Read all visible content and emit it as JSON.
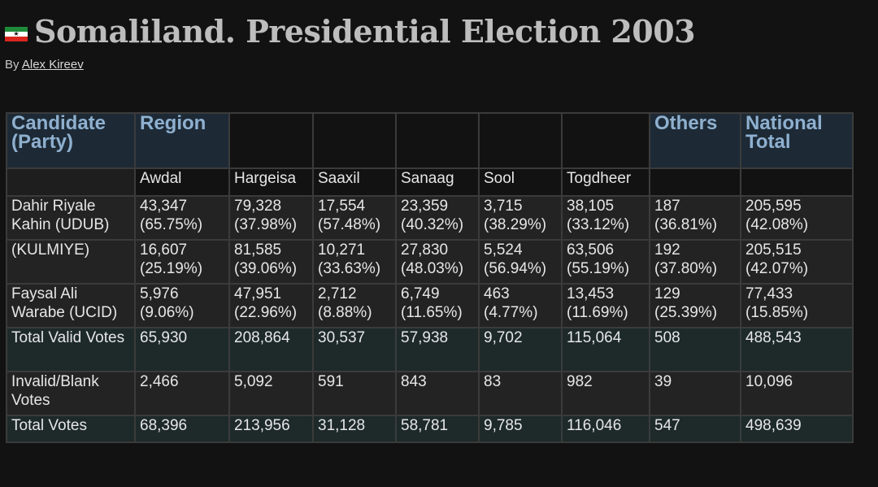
{
  "header": {
    "title": "Somaliland. Presidential Election 2003",
    "by_prefix": "By",
    "author": "Alex Kireev"
  },
  "table": {
    "head": {
      "candidate": "Candidate (Party)",
      "region": "Region",
      "others": "Others",
      "national": "National Total"
    },
    "regions": [
      "Awdal",
      "Hargeisa",
      "Saaxil",
      "Sanaag",
      "Sool",
      "Togdheer"
    ],
    "rows": [
      {
        "label": "Dahir Riyale Kahin (UDUB)",
        "cells": [
          [
            "43,347",
            "(65.75%)"
          ],
          [
            "79,328",
            "(37.98%)"
          ],
          [
            "17,554",
            "(57.48%)"
          ],
          [
            "23,359",
            "(40.32%)"
          ],
          [
            "3,715",
            "(38.29%)"
          ],
          [
            "38,105",
            "(33.12%)"
          ],
          [
            "187",
            "(36.81%)"
          ],
          [
            "205,595",
            "(42.08%)"
          ]
        ]
      },
      {
        "label": "(KULMIYE)",
        "cells": [
          [
            "16,607",
            "(25.19%)"
          ],
          [
            "81,585",
            "(39.06%)"
          ],
          [
            "10,271",
            "(33.63%)"
          ],
          [
            "27,830",
            "(48.03%)"
          ],
          [
            "5,524",
            "(56.94%)"
          ],
          [
            "63,506",
            "(55.19%)"
          ],
          [
            "192",
            "(37.80%)"
          ],
          [
            "205,515",
            "(42.07%)"
          ]
        ]
      },
      {
        "label": "Faysal Ali Warabe (UCID)",
        "cells": [
          [
            "5,976",
            "(9.06%)"
          ],
          [
            "47,951",
            "(22.96%)"
          ],
          [
            "2,712",
            "(8.88%)"
          ],
          [
            "6,749",
            "(11.65%)"
          ],
          [
            "463",
            "(4.77%)"
          ],
          [
            "13,453",
            "(11.69%)"
          ],
          [
            "129",
            "(25.39%)"
          ],
          [
            "77,433",
            "(15.85%)"
          ]
        ]
      },
      {
        "label": "Total Valid Votes",
        "cells": [
          [
            "65,930",
            ""
          ],
          [
            "208,864",
            ""
          ],
          [
            "30,537",
            ""
          ],
          [
            "57,938",
            ""
          ],
          [
            "9,702",
            ""
          ],
          [
            "115,064",
            ""
          ],
          [
            "508",
            ""
          ],
          [
            "488,543",
            ""
          ]
        ]
      },
      {
        "label": "Invalid/Blank Votes",
        "cells": [
          [
            "2,466",
            ""
          ],
          [
            "5,092",
            ""
          ],
          [
            "591",
            ""
          ],
          [
            "843",
            ""
          ],
          [
            "83",
            ""
          ],
          [
            "982",
            ""
          ],
          [
            "39",
            ""
          ],
          [
            "10,096",
            ""
          ]
        ]
      },
      {
        "label": "Total Votes",
        "cells": [
          [
            "68,396",
            ""
          ],
          [
            "213,956",
            ""
          ],
          [
            "31,128",
            ""
          ],
          [
            "58,781",
            ""
          ],
          [
            "9,785",
            ""
          ],
          [
            "116,046",
            ""
          ],
          [
            "547",
            ""
          ],
          [
            "498,639",
            ""
          ]
        ]
      }
    ]
  }
}
